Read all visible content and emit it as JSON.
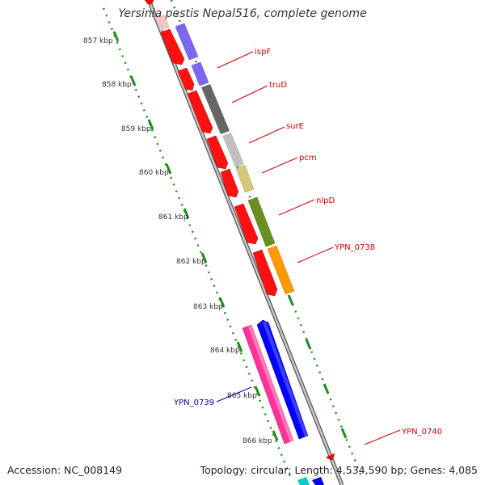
{
  "title": "Yersinia pestis Nepal516, complete genome",
  "footer": {
    "accession_label": "Accession:",
    "accession": "NC_008149",
    "topology_label": "Topology:",
    "topology": "circular",
    "length_label": "Length:",
    "length": "4,534,590 bp",
    "genes_label": "Genes:",
    "genes": "4,085"
  },
  "colors": {
    "forward_strand": "#ff0000",
    "reverse_label": "#0000aa",
    "tick": "#228b22",
    "backbone": "#888888"
  },
  "ticks": [
    "857 kbp",
    "858 kbp",
    "859 kbp",
    "860 kbp",
    "861 kbp",
    "862 kbp",
    "863 kbp",
    "864 kbp",
    "865 kbp",
    "866 kbp"
  ],
  "gene_labels": [
    {
      "name": "ispF",
      "color": "#cc0000"
    },
    {
      "name": "truD",
      "color": "#cc0000"
    },
    {
      "name": "surE",
      "color": "#cc0000"
    },
    {
      "name": "pcm",
      "color": "#cc0000"
    },
    {
      "name": "nlpD",
      "color": "#cc0000"
    },
    {
      "name": "YPN_0738",
      "color": "#cc0000"
    },
    {
      "name": "YPN_0739",
      "color": "#0000aa"
    },
    {
      "name": "YPN_0740",
      "color": "#cc0000"
    }
  ]
}
